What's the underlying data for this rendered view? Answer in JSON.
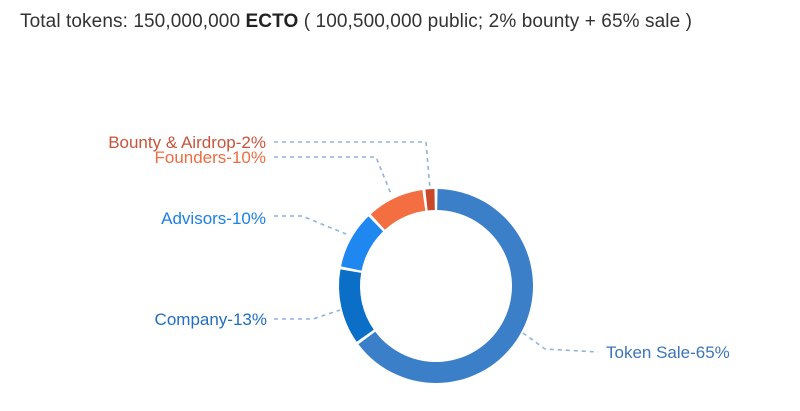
{
  "summary": {
    "prefix": "Total tokens: 150,000,000 ",
    "token": "ECTO",
    "suffix": " ( 100,500,000 public; 2% bounty + 65% sale )"
  },
  "chart_data": {
    "type": "pie",
    "donut": true,
    "slices": [
      {
        "label": "Token Sale-65%",
        "value": 65,
        "color": "#3b7fc9",
        "label_color": "#3b76b8"
      },
      {
        "label": "Company-13%",
        "value": 13,
        "color": "#0b6fc7",
        "label_color": "#1f6ebf"
      },
      {
        "label": "Advisors-10%",
        "value": 10,
        "color": "#1e87f0",
        "label_color": "#1b80e8"
      },
      {
        "label": "Founders-10%",
        "value": 10,
        "color": "#f36e40",
        "label_color": "#ee6c42"
      },
      {
        "label": "Bounty & Airdrop-2%",
        "value": 2,
        "color": "#c9472b",
        "label_color": "#c9543c"
      }
    ],
    "leader_line_color": "#8fb4dc",
    "legend": "none"
  }
}
